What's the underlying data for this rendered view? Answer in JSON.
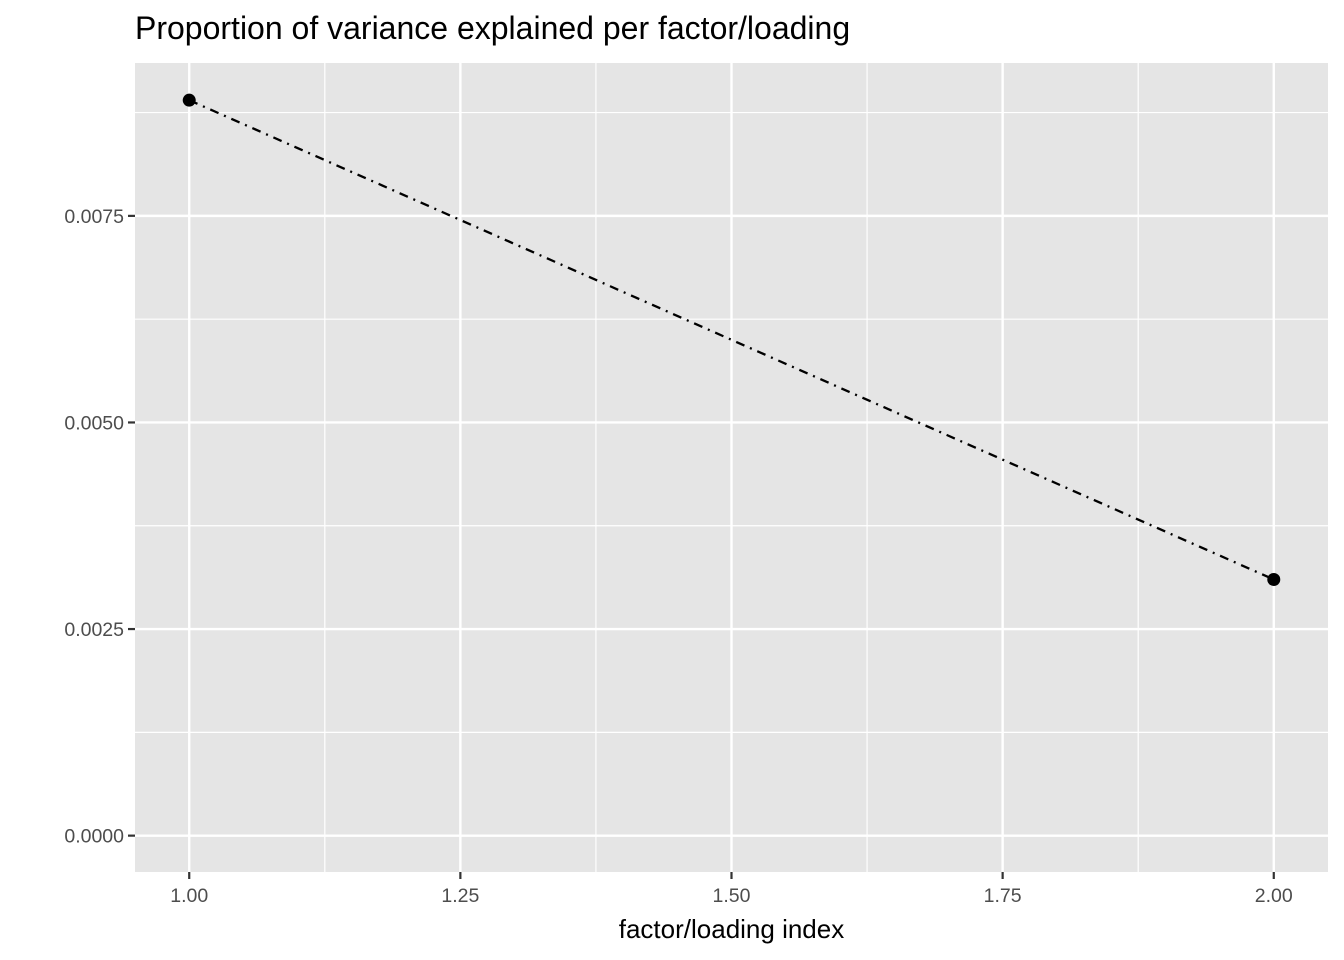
{
  "chart_data": {
    "type": "line",
    "title": "Proportion of variance explained per factor/loading",
    "xlabel": "factor/loading index",
    "ylabel": "",
    "x": [
      1,
      2
    ],
    "series": [
      {
        "values": [
          0.0089,
          0.0031
        ]
      }
    ],
    "xlim": [
      0.95,
      2.05
    ],
    "ylim": [
      -0.00044,
      0.00935
    ],
    "x_ticks": [
      1.0,
      1.25,
      1.5,
      1.75,
      2.0
    ],
    "x_tick_labels": [
      "1.00",
      "1.25",
      "1.50",
      "1.75",
      "2.00"
    ],
    "x_minor_ticks": [
      1.125,
      1.375,
      1.625,
      1.875
    ],
    "y_ticks": [
      0.0,
      0.0025,
      0.005,
      0.0075
    ],
    "y_tick_labels": [
      "0.0000",
      "0.0025",
      "0.0050",
      "0.0075"
    ],
    "y_minor_ticks": [
      0.00125,
      0.00375,
      0.00625,
      0.00875
    ],
    "line_style": "dotdash",
    "grid": true,
    "legend": "none",
    "colors": {
      "panel_background": "#e5e5e5",
      "grid": "#ffffff",
      "line": "#000000",
      "point": "#000000",
      "tick_text": "#4d4d4d",
      "tick_mark": "#333333"
    }
  }
}
